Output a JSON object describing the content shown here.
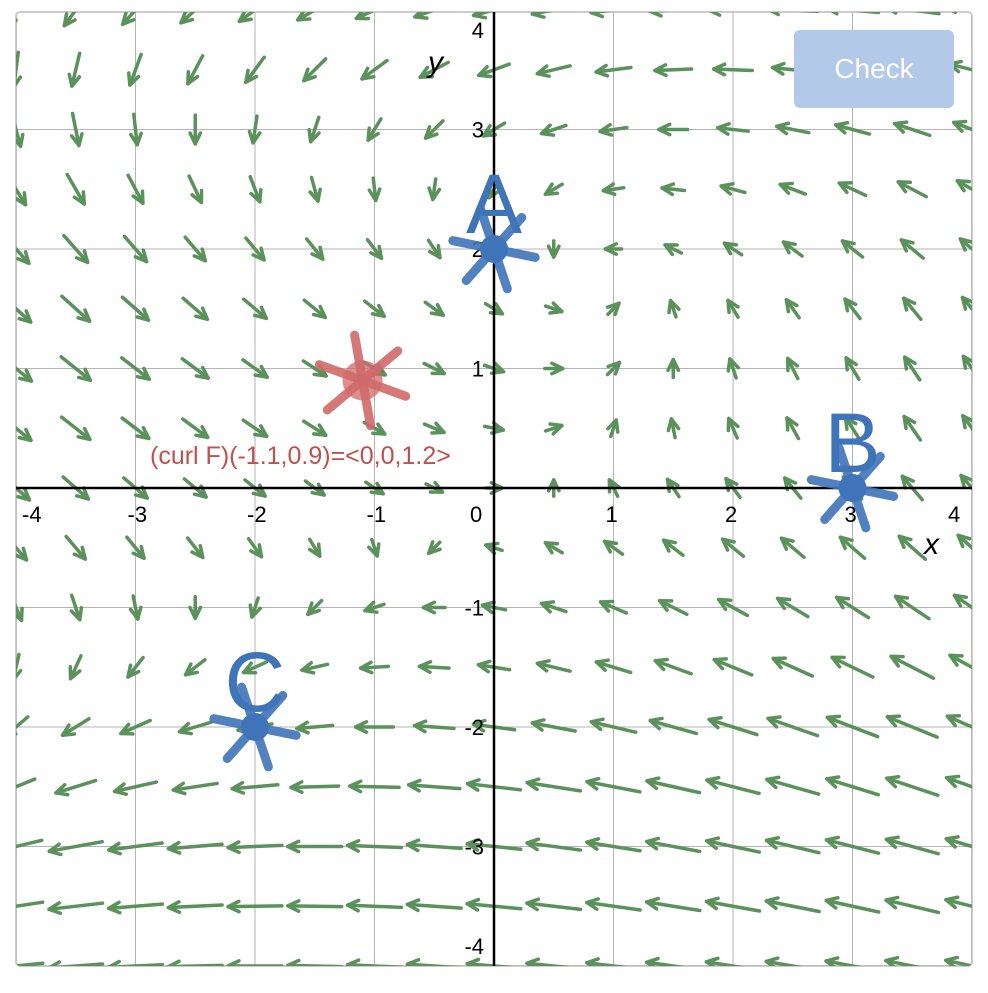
{
  "toolbar": {
    "check_label": "Check"
  },
  "axes": {
    "x_label": "x",
    "y_label": "y",
    "x_ticks": [
      "-4",
      "-3",
      "-2",
      "-1",
      "0",
      "1",
      "2",
      "3",
      "4"
    ],
    "y_ticks": [
      "-4",
      "-3",
      "-2",
      "-1",
      "1",
      "2",
      "3",
      "4"
    ]
  },
  "points": [
    {
      "label": "A",
      "x": 0,
      "y": 2
    },
    {
      "label": "B",
      "x": 3,
      "y": 0
    },
    {
      "label": "C",
      "x": -2,
      "y": -2
    }
  ],
  "probe": {
    "x": -1.1,
    "y": 0.9
  },
  "curl_readout": "(curl F)(-1.1,0.9)=<0,0,1.2>",
  "colors": {
    "arrow": "#5b915b",
    "point": "#3f74b8",
    "probe": "#d06a6a",
    "readout": "#c0504d",
    "button": "#b3c9ea"
  }
}
